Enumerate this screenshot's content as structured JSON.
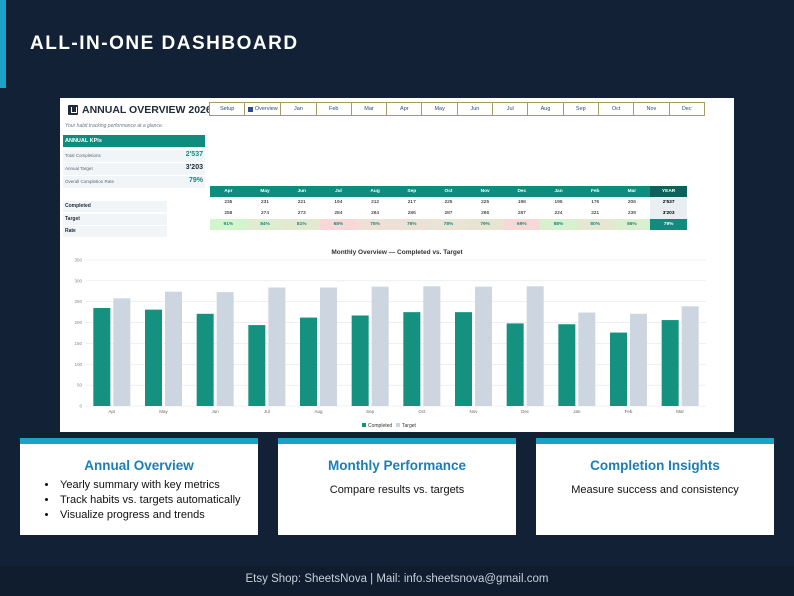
{
  "page": {
    "title": "ALL-IN-ONE DASHBOARD"
  },
  "sheet": {
    "title": "ANNUAL OVERVIEW 2026",
    "subtitle": "Your habit tracking performance at a glance.",
    "tabs": [
      "Setup",
      "Overview",
      "Jan",
      "Feb",
      "Mar",
      "Apr",
      "May",
      "Jun",
      "Jul",
      "Aug",
      "Sep",
      "Oct",
      "Nov",
      "Dec"
    ],
    "active_tab": "Overview"
  },
  "kpis": {
    "header": "ANNUAL KPIs",
    "rows": [
      {
        "label": "Total Completions",
        "value": "2'537",
        "color": "#0f8c7e"
      },
      {
        "label": "Annual Target",
        "value": "3'203",
        "color": "#1f2a3a"
      },
      {
        "label": "Overall Completion Rate",
        "value": "79%",
        "color": "#0f8c7e"
      }
    ]
  },
  "monthly_table": {
    "months": [
      "Apr",
      "May",
      "Jun",
      "Jul",
      "Aug",
      "Sep",
      "Oct",
      "Nov",
      "Dec",
      "Jan",
      "Feb",
      "Mar"
    ],
    "year_header": "YEAR",
    "row_labels": [
      "Completed",
      "Target",
      "Rate"
    ],
    "completed": [
      "235",
      "231",
      "221",
      "194",
      "212",
      "217",
      "225",
      "225",
      "198",
      "196",
      "176",
      "206"
    ],
    "completed_year": "2'537",
    "target": [
      "258",
      "274",
      "273",
      "284",
      "284",
      "286",
      "287",
      "286",
      "287",
      "224",
      "221",
      "239"
    ],
    "target_year": "3'203",
    "rate": [
      "91%",
      "84%",
      "81%",
      "68%",
      "75%",
      "76%",
      "78%",
      "79%",
      "69%",
      "88%",
      "80%",
      "86%"
    ],
    "rate_year": "79%"
  },
  "chart_data": {
    "type": "bar",
    "title": "Monthly Overview — Completed vs. Target",
    "categories": [
      "Apr",
      "May",
      "Jun",
      "Jul",
      "Aug",
      "Sep",
      "Oct",
      "Nov",
      "Dec",
      "Jan",
      "Feb",
      "Mar"
    ],
    "series": [
      {
        "name": "Completed",
        "values": [
          235,
          231,
          221,
          194,
          212,
          217,
          225,
          225,
          198,
          196,
          176,
          206
        ],
        "color": "#159180"
      },
      {
        "name": "Target",
        "values": [
          258,
          274,
          273,
          284,
          284,
          286,
          287,
          286,
          287,
          224,
          221,
          239
        ],
        "color": "#ccd5e0"
      }
    ],
    "yticks": [
      0,
      50,
      100,
      150,
      200,
      250,
      300,
      350
    ],
    "ylim": [
      0,
      350
    ],
    "legend_position": "bottom",
    "grid": true
  },
  "cards": [
    {
      "title": "Annual Overview",
      "bullets": [
        "Yearly summary with key metrics",
        "Track habits vs. targets automatically",
        "Visualize progress and trends"
      ]
    },
    {
      "title": "Monthly Performance",
      "text": "Compare results vs. targets"
    },
    {
      "title": "Completion Insights",
      "text": "Measure success and consistency"
    }
  ],
  "footer": {
    "text": "Etsy Shop: SheetsNova  |  Mail: info.sheetsnova@gmail.com"
  }
}
